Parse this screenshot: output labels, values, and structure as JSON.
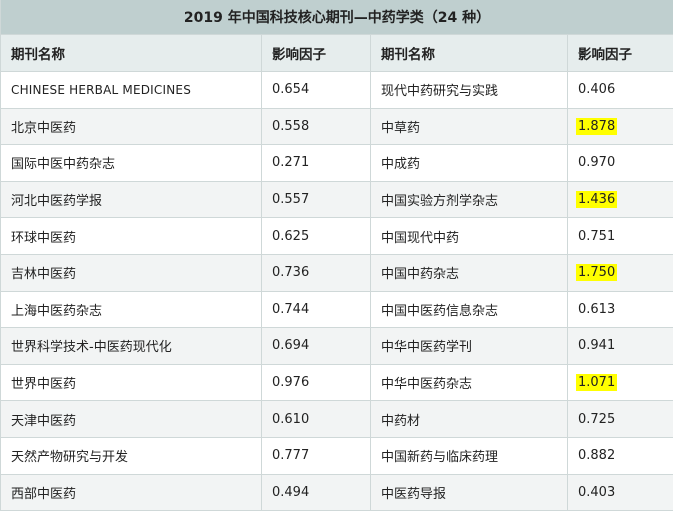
{
  "title": "2019 年中国科技核心期刊—中药学类（24 种）",
  "headers": [
    "期刊名称",
    "影响因子",
    "期刊名称",
    "影响因子"
  ],
  "highlight_color": "#ffff00",
  "rows": [
    {
      "name_left": "CHINESE HERBAL MEDICINES",
      "if_left": "0.654",
      "name_right": "现代中药研究与实践",
      "if_right": "0.406",
      "hl_right": false
    },
    {
      "name_left": "北京中医药",
      "if_left": "0.558",
      "name_right": "中草药",
      "if_right": "1.878",
      "hl_right": true
    },
    {
      "name_left": "国际中医中药杂志",
      "if_left": "0.271",
      "name_right": "中成药",
      "if_right": "0.970",
      "hl_right": false
    },
    {
      "name_left": "河北中医药学报",
      "if_left": "0.557",
      "name_right": "中国实验方剂学杂志",
      "if_right": "1.436",
      "hl_right": true
    },
    {
      "name_left": "环球中医药",
      "if_left": "0.625",
      "name_right": "中国现代中药",
      "if_right": "0.751",
      "hl_right": false
    },
    {
      "name_left": "吉林中医药",
      "if_left": "0.736",
      "name_right": "中国中药杂志",
      "if_right": "1.750",
      "hl_right": true
    },
    {
      "name_left": "上海中医药杂志",
      "if_left": "0.744",
      "name_right": "中国中医药信息杂志",
      "if_right": "0.613",
      "hl_right": false
    },
    {
      "name_left": "世界科学技术-中医药现代化",
      "if_left": "0.694",
      "name_right": "中华中医药学刊",
      "if_right": "0.941",
      "hl_right": false
    },
    {
      "name_left": "世界中医药",
      "if_left": "0.976",
      "name_right": "中华中医药杂志",
      "if_right": "1.071",
      "hl_right": true
    },
    {
      "name_left": "天津中医药",
      "if_left": "0.610",
      "name_right": "中药材",
      "if_right": "0.725",
      "hl_right": false
    },
    {
      "name_left": "天然产物研究与开发",
      "if_left": "0.777",
      "name_right": "中国新药与临床药理",
      "if_right": "0.882",
      "hl_right": false
    },
    {
      "name_left": "西部中医药",
      "if_left": "0.494",
      "name_right": "中医药导报",
      "if_right": "0.403",
      "hl_right": false
    }
  ]
}
